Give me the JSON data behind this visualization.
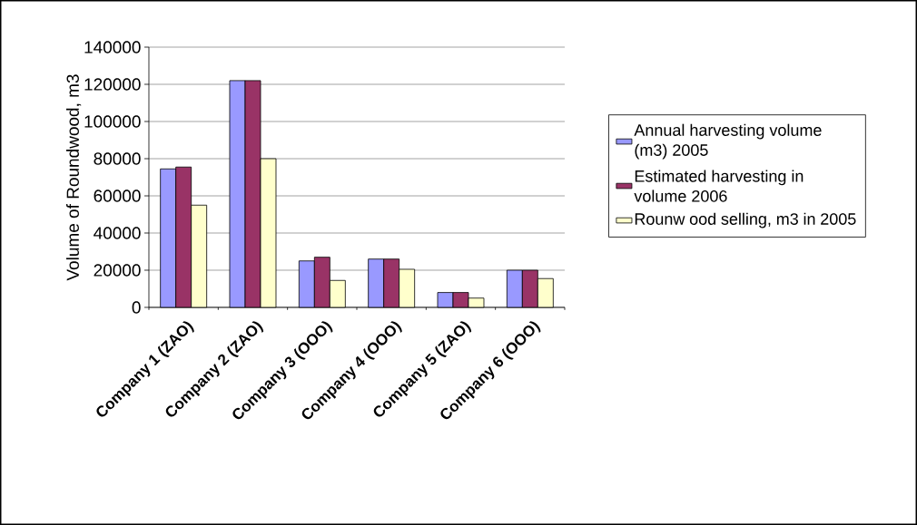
{
  "chart_data": {
    "type": "bar",
    "ylabel": "Volume of Roundwood, m3",
    "categories": [
      "Company 1 (ZAO)",
      "Company 2 (ZAO)",
      "Company 3 (OOO)",
      "Company 4 (OOO)",
      "Company 5 (ZAO)",
      "Company 6 (OOO)"
    ],
    "series": [
      {
        "name": "Annual harvesting volume (m3) 2005",
        "color": "#9999ff",
        "values": [
          74500,
          122000,
          25000,
          26000,
          8000,
          20000
        ]
      },
      {
        "name": "Estimated harvesting in volume 2006",
        "color": "#993366",
        "values": [
          75500,
          122000,
          27000,
          26000,
          8000,
          20000
        ]
      },
      {
        "name": "Rounw ood selling, m3 in 2005",
        "color": "#ffffcc",
        "values": [
          55000,
          80000,
          14500,
          20500,
          5000,
          15500
        ]
      }
    ],
    "ylim": [
      0,
      140000
    ],
    "yticks": [
      0,
      20000,
      40000,
      60000,
      80000,
      100000,
      120000,
      140000
    ],
    "grid": "y",
    "legend": "right"
  }
}
